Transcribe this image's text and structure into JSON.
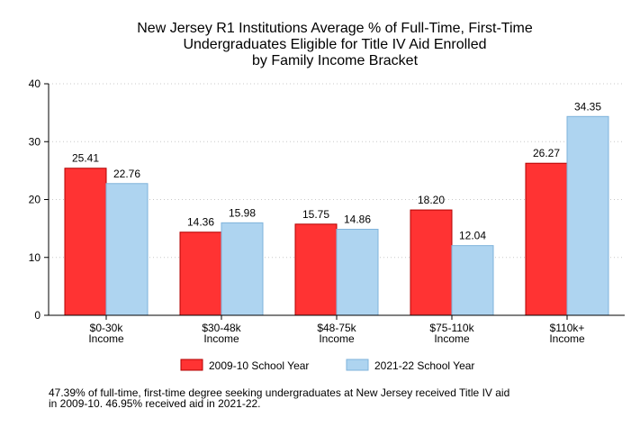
{
  "chart_data": {
    "type": "bar",
    "title": [
      "New Jersey R1 Institutions Average % of Full-Time, First-Time",
      "Undergraduates Eligible for Title IV Aid Enrolled",
      "by Family Income Bracket"
    ],
    "categories": [
      [
        "$0-30k",
        "Income"
      ],
      [
        "$30-48k",
        "Income"
      ],
      [
        "$48-75k",
        "Income"
      ],
      [
        "$75-110k",
        "Income"
      ],
      [
        "$110k+",
        "Income"
      ]
    ],
    "series": [
      {
        "name": "2009-10 School Year",
        "color": "#ff3333",
        "stroke": "#b30000",
        "values": [
          25.41,
          14.36,
          15.75,
          18.2,
          26.27
        ],
        "labels": [
          "25.41",
          "14.36",
          "15.75",
          "18.20",
          "26.27"
        ]
      },
      {
        "name": "2021-22 School Year",
        "color": "#aed4f0",
        "stroke": "#7fb3db",
        "values": [
          22.76,
          15.98,
          14.86,
          12.04,
          34.35
        ],
        "labels": [
          "22.76",
          "15.98",
          "14.86",
          "12.04",
          "34.35"
        ]
      }
    ],
    "ylim": [
      0,
      40
    ],
    "yticks": [
      0,
      10,
      20,
      30,
      40
    ],
    "grid": true,
    "legend_position": "bottom"
  },
  "footnote": [
    "47.39% of full-time, first-time degree seeking undergraduates at New Jersey received Title IV aid",
    "in 2009-10. 46.95% received aid in 2021-22."
  ]
}
